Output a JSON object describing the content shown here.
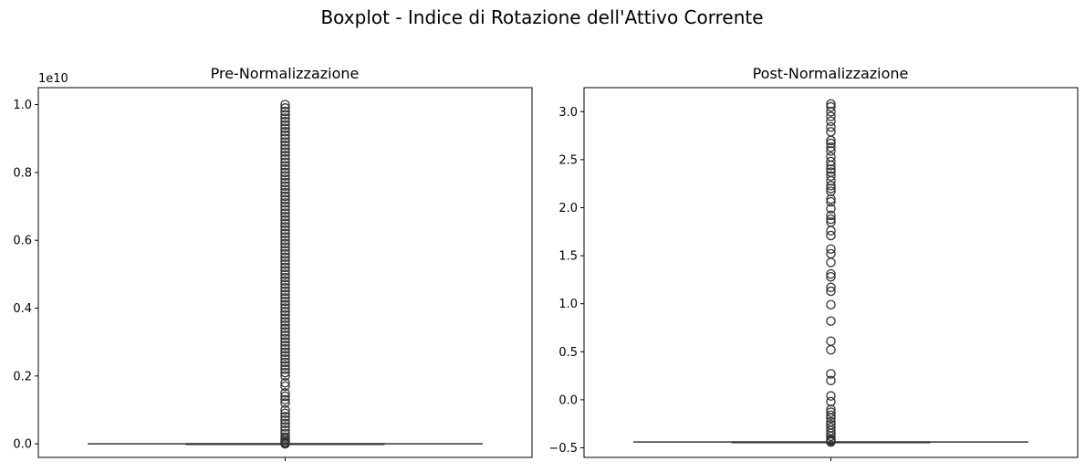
{
  "figure": {
    "title": "Boxplot - Indice di Rotazione dell'Attivo Corrente"
  },
  "colors": {
    "line": "#333333",
    "spine": "#000000",
    "background": "#ffffff"
  },
  "chart_data": [
    {
      "type": "box",
      "title": "Pre-Normalizzazione",
      "xlabel": "",
      "ylabel": "",
      "y_offset_label": "1e10",
      "ylim": [
        -0.04,
        1.05
      ],
      "yticks": [
        0.0,
        0.2,
        0.4,
        0.6,
        0.8,
        1.0
      ],
      "ytick_labels": [
        "0.0",
        "0.2",
        "0.4",
        "0.6",
        "0.8",
        "1.0"
      ],
      "box": {
        "q1": 0.0,
        "median": 0.0,
        "q3": 0.0,
        "whisker_low": 0.0,
        "whisker_high": 0.0
      },
      "outliers": [
        0.0,
        0.002,
        0.005,
        0.01,
        0.015,
        0.02,
        0.03,
        0.04,
        0.05,
        0.06,
        0.07,
        0.08,
        0.09,
        0.1,
        0.12,
        0.13,
        0.14,
        0.15,
        0.17,
        0.18,
        0.2,
        0.21,
        0.22,
        0.23,
        0.24,
        0.25,
        0.26,
        0.27,
        0.28,
        0.29,
        0.3,
        0.31,
        0.32,
        0.33,
        0.34,
        0.35,
        0.36,
        0.37,
        0.38,
        0.39,
        0.4,
        0.41,
        0.42,
        0.43,
        0.44,
        0.45,
        0.46,
        0.47,
        0.48,
        0.49,
        0.5,
        0.51,
        0.52,
        0.53,
        0.54,
        0.55,
        0.56,
        0.57,
        0.58,
        0.59,
        0.6,
        0.61,
        0.62,
        0.63,
        0.64,
        0.65,
        0.66,
        0.67,
        0.68,
        0.69,
        0.7,
        0.71,
        0.72,
        0.73,
        0.74,
        0.75,
        0.76,
        0.77,
        0.78,
        0.79,
        0.8,
        0.81,
        0.82,
        0.83,
        0.84,
        0.85,
        0.86,
        0.87,
        0.88,
        0.89,
        0.9,
        0.91,
        0.92,
        0.93,
        0.94,
        0.95,
        0.96,
        0.97,
        0.98,
        0.99,
        1.0
      ]
    },
    {
      "type": "box",
      "title": "Post-Normalizzazione",
      "xlabel": "",
      "ylabel": "",
      "ylim": [
        -0.6,
        3.25
      ],
      "yticks": [
        -0.5,
        0.0,
        0.5,
        1.0,
        1.5,
        2.0,
        2.5,
        3.0
      ],
      "ytick_labels": [
        "−0.5",
        "0.0",
        "0.5",
        "1.0",
        "1.5",
        "2.0",
        "2.5",
        "3.0"
      ],
      "box": {
        "q1": -0.44,
        "median": -0.44,
        "q3": -0.44,
        "whisker_low": -0.44,
        "whisker_high": -0.44
      },
      "outliers": [
        -0.44,
        -0.43,
        -0.42,
        -0.41,
        -0.38,
        -0.35,
        -0.32,
        -0.29,
        -0.26,
        -0.23,
        -0.19,
        -0.16,
        -0.13,
        -0.1,
        -0.02,
        0.04,
        0.2,
        0.27,
        0.52,
        0.61,
        0.82,
        0.99,
        1.13,
        1.17,
        1.28,
        1.31,
        1.43,
        1.52,
        1.57,
        1.71,
        1.76,
        1.85,
        1.88,
        1.92,
        1.99,
        2.06,
        2.09,
        2.17,
        2.2,
        2.23,
        2.28,
        2.33,
        2.37,
        2.4,
        2.44,
        2.48,
        2.53,
        2.59,
        2.63,
        2.67,
        2.7,
        2.79,
        2.84,
        2.9,
        2.95,
        3.0,
        3.05,
        3.08
      ]
    }
  ]
}
